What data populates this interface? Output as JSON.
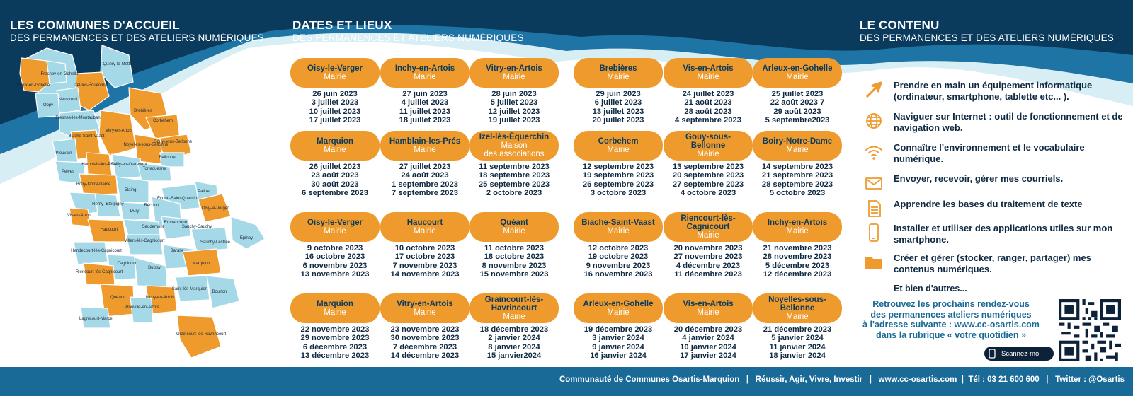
{
  "colors": {
    "orange": "#ee9a2d",
    "light_blue": "#a6d9e8",
    "navy": "#0b3b5c",
    "blue": "#1a6a98"
  },
  "header_left": {
    "title": "LES COMMUNES D'ACCUEIL",
    "subtitle": "DES PERMANENCES ET DES ATELIERS NUMÉRIQUES"
  },
  "header_mid": {
    "title": "DATES ET LIEUX",
    "subtitle": "DES PERMANENCES ET ATELIERS NUMÉRIQUES"
  },
  "header_right": {
    "title": "LE CONTENU",
    "subtitle": "DES PERMANENCES ET DES ATELIERS NUMÉRIQUES"
  },
  "map_labels": [
    "Fresnoy-en-Gohelle",
    "Quiéry-la-Motte",
    "Arleux-en-Gohelle",
    "Izel-lès-Équerchin",
    "Neuvireuil",
    "Oppy",
    "Brebières",
    "Fresnes-lès-Montauban",
    "Corbehem",
    "Vitry-en-Artois",
    "Biache-Saint-Vaast",
    "Gouy-sous-Bellonne",
    "Noyelles-sous-Bellonne",
    "Plouvain",
    "Bellonne",
    "Hamblain-les-Prés",
    "Sailly-en-Ostrevent",
    "Pelves",
    "Tortequesne",
    "Boiry-Notre-Dame",
    "Etaing",
    "Palluel",
    "Eterpigny",
    "Écourt-Saint-Quentin",
    "Oisy-le-Verger",
    "Rémy",
    "Dury",
    "Récourt",
    "Vis-en-Artois",
    "Saudemont",
    "Rumaucourt",
    "Sauchy-Cauchy",
    "Haucourt",
    "Epinoy",
    "Villers-lès-Cagnicourt",
    "Sauchy-Lestrée",
    "Hendecourt-lès-Cagnicourt",
    "Baralle",
    "Marquion",
    "Cagnicourt",
    "Buissy",
    "Riencourt-lès-Cagnicourt",
    "Saint-lès-Marquion",
    "Quéant",
    "Bourlon",
    "Inchy-en-Artois",
    "Pronville-en-Artois",
    "Lagnicourt-Marcel",
    "Graincourt-lès-Havrincourt"
  ],
  "schedule": [
    {
      "town": "Oisy-le-Verger",
      "venue": "Mairie",
      "dates": [
        "26 juin 2023",
        "3 juillet 2023",
        "10 juillet 2023",
        "17 juillet 2023"
      ]
    },
    {
      "town": "Inchy-en-Artois",
      "venue": "Mairie",
      "dates": [
        "27 juin 2023",
        "4 juillet 2023",
        "11 juillet 2023",
        "18 juillet 2023"
      ]
    },
    {
      "town": "Vitry-en-Artois",
      "venue": "Mairie",
      "dates": [
        "28 juin 2023",
        "5 juillet 2023",
        "12 juillet 2023",
        "19 juillet 2023"
      ]
    },
    {
      "town": "Brebières",
      "venue": "Mairie",
      "dates": [
        "29 juin 2023",
        "6 juillet 2023",
        "13 juillet 2023",
        "20 juillet 2023"
      ]
    },
    {
      "town": "Vis-en-Artois",
      "venue": "Mairie",
      "dates": [
        "24 juillet 2023",
        "21 août 2023",
        "28 août 2023",
        "4 septembre 2023"
      ]
    },
    {
      "town": "Arleux-en-Gohelle",
      "venue": "Mairie",
      "dates": [
        "25 juillet 2023",
        "22 août 2023 7",
        "29 août 2023",
        "5 septembre2023"
      ]
    },
    {
      "town": "Marquion",
      "venue": "Mairie",
      "dates": [
        "26 juillet 2023",
        "23 août 2023",
        "30 août 2023",
        "6 septembre 2023"
      ]
    },
    {
      "town": "Hamblain-les-Prés",
      "venue": "Mairie",
      "dates": [
        "27 juillet 2023",
        "24 août 2023",
        "1 septembre 2023",
        "7 septembre 2023"
      ]
    },
    {
      "town": "Izel-lès-Équerchin",
      "venue": "Maison\ndes associations",
      "dates": [
        "11 septembre 2023",
        "18 septembre 2023",
        "25 septembre 2023",
        "2 octobre 2023"
      ]
    },
    {
      "town": "Corbehem",
      "venue": "Mairie",
      "dates": [
        "12 septembre 2023",
        "19 septembre 2023",
        "26 septembre 2023",
        "3 octobre 2023"
      ]
    },
    {
      "town": "Gouy-sous-Bellonne",
      "venue": "Mairie",
      "dates": [
        "13 septembre 2023",
        "20 septembre 2023",
        "27 septembre 2023",
        "4 octobre 2023"
      ]
    },
    {
      "town": "Boiry-Notre-Dame",
      "venue": "Mairie",
      "dates": [
        "14 septembre 2023",
        "21 septembre 2023",
        "28 septembre 2023",
        "5 octobre 2023"
      ]
    },
    {
      "town": "Oisy-le-Verger",
      "venue": "Mairie",
      "dates": [
        "9 octobre 2023",
        "16 octobre 2023",
        "6 novembre 2023",
        "13 novembre 2023"
      ]
    },
    {
      "town": "Haucourt",
      "venue": "Mairie",
      "dates": [
        "10 octobre 2023",
        "17 octobre 2023",
        "7 novembre 2023",
        "14 novembre 2023"
      ]
    },
    {
      "town": "Quéant",
      "venue": "Mairie",
      "dates": [
        "11 octobre 2023",
        "18 octobre 2023",
        "8 novembre 2023",
        "15 novembre 2023"
      ]
    },
    {
      "town": "Biache-Saint-Vaast",
      "venue": "Mairie",
      "dates": [
        "12 octobre 2023",
        "19 octobre 2023",
        "9 novembre 2023",
        "16 novembre 2023"
      ]
    },
    {
      "town": "Riencourt-lès-\nCagnicourt",
      "venue": "Mairie",
      "dates": [
        "20 novembre 2023",
        "27 novembre 2023",
        "4 décembre 2023",
        "11 décembre 2023"
      ]
    },
    {
      "town": "Inchy-en-Artois",
      "venue": "Mairie",
      "dates": [
        "21 novembre 2023",
        "28 novembre 2023",
        "5 décembre 2023",
        "12 décembre 2023"
      ]
    },
    {
      "town": "Marquion",
      "venue": "Mairie",
      "dates": [
        "22 novembre 2023",
        "29 novembre 2023",
        "6 décembre 2023",
        "13 décembre 2023"
      ]
    },
    {
      "town": "Vitry-en-Artois",
      "venue": "Mairie",
      "dates": [
        "23 novembre 2023",
        "30 novembre 2023",
        "7 décembre 2023",
        "14 décembre 2023"
      ]
    },
    {
      "town": "Graincourt-lès-\nHavrincourt",
      "venue": "Mairie",
      "dates": [
        "18 décembre 2023",
        "2 janvier 2024",
        "8 janvier 2024",
        "15 janvier2024"
      ]
    },
    {
      "town": "Arleux-en-Gohelle",
      "venue": "Mairie",
      "dates": [
        "19 décembre 2023",
        "3 janvier 2024",
        "9 janvier 2024",
        "16 janvier 2024"
      ]
    },
    {
      "town": "Vis-en-Artois",
      "venue": "Mairie",
      "dates": [
        "20 décembre 2023",
        "4 janvier 2024",
        "10 janvier 2024",
        "17 janvier 2024"
      ]
    },
    {
      "town": "Noyelles-sous-\nBellonne",
      "venue": "Mairie",
      "dates": [
        "21 décembre 2023",
        "5 janvier 2024",
        "11 janvier 2024",
        "18 janvier 2024"
      ]
    }
  ],
  "contents": [
    {
      "icon": "cursor-arrow-icon",
      "text": "Prendre en main un équipement informatique (ordinateur, smartphone, tablette etc... )."
    },
    {
      "icon": "globe-icon",
      "text": "Naviguer sur Internet : outil de fonctionnement et de navigation web."
    },
    {
      "icon": "wifi-icon",
      "text": "Connaître l'environnement et le vocabulaire numérique."
    },
    {
      "icon": "envelope-icon",
      "text": "Envoyer, recevoir, gérer mes courriels."
    },
    {
      "icon": "document-icon",
      "text": "Apprendre les bases du traitement de texte"
    },
    {
      "icon": "smartphone-icon",
      "text": "Installer et utiliser des applications utiles sur mon smartphone."
    },
    {
      "icon": "folder-icon",
      "text": "Créer et gérer (stocker, ranger, partager) mes contenus numériques."
    }
  ],
  "more": "Et bien d'autres...",
  "cta": [
    "Retrouvez les prochains rendez-vous",
    "des permanences ateliers numériques",
    "à l'adresse suivante : www.cc-osartis.com",
    "dans la rubrique « votre quotidien »"
  ],
  "scan_label": "Scannez-moi",
  "footer": "Communauté de Communes Osartis-Marquion   |   Réussir, Agir, Vivre, Investir   |   www.cc-osartis.com  |  Tél : 03 21 600 600   |   Twitter : @Osartis"
}
